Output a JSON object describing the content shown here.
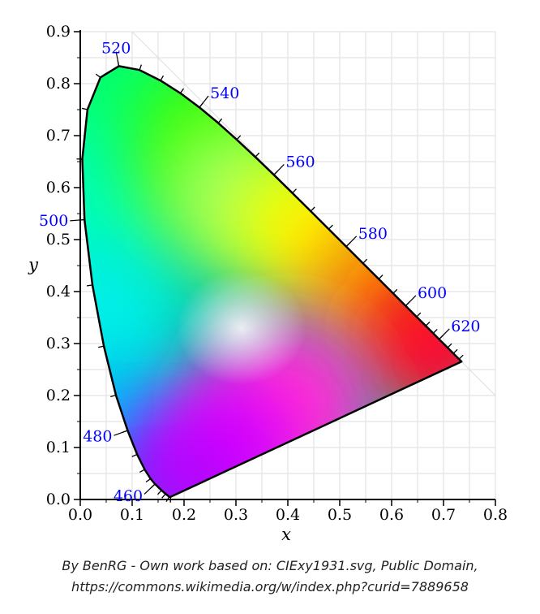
{
  "chart_data": {
    "type": "chromaticity-diagram",
    "xlabel": "x",
    "ylabel": "y",
    "xlim": [
      0.0,
      0.8
    ],
    "ylim": [
      0.0,
      0.9
    ],
    "x_ticks": [
      "0.0",
      "0.1",
      "0.2",
      "0.3",
      "0.4",
      "0.5",
      "0.6",
      "0.7",
      "0.8"
    ],
    "y_ticks": [
      "0.0",
      "0.1",
      "0.2",
      "0.3",
      "0.4",
      "0.5",
      "0.6",
      "0.7",
      "0.8",
      "0.9"
    ],
    "grid": true,
    "spectral_locus": [
      {
        "nm": 380,
        "x": 0.1741,
        "y": 0.005
      },
      {
        "nm": 420,
        "x": 0.1714,
        "y": 0.0051
      },
      {
        "nm": 440,
        "x": 0.1644,
        "y": 0.0109
      },
      {
        "nm": 450,
        "x": 0.1566,
        "y": 0.0177
      },
      {
        "nm": 460,
        "x": 0.144,
        "y": 0.0297
      },
      {
        "nm": 465,
        "x": 0.1355,
        "y": 0.0399
      },
      {
        "nm": 470,
        "x": 0.1241,
        "y": 0.0578
      },
      {
        "nm": 475,
        "x": 0.1096,
        "y": 0.0868
      },
      {
        "nm": 480,
        "x": 0.0913,
        "y": 0.1327
      },
      {
        "nm": 485,
        "x": 0.0687,
        "y": 0.2007
      },
      {
        "nm": 490,
        "x": 0.0454,
        "y": 0.295
      },
      {
        "nm": 495,
        "x": 0.0235,
        "y": 0.4127
      },
      {
        "nm": 500,
        "x": 0.0082,
        "y": 0.5384
      },
      {
        "nm": 505,
        "x": 0.0039,
        "y": 0.6548
      },
      {
        "nm": 510,
        "x": 0.0139,
        "y": 0.7502
      },
      {
        "nm": 515,
        "x": 0.0389,
        "y": 0.812
      },
      {
        "nm": 520,
        "x": 0.0743,
        "y": 0.8338
      },
      {
        "nm": 525,
        "x": 0.1142,
        "y": 0.8262
      },
      {
        "nm": 530,
        "x": 0.1547,
        "y": 0.8059
      },
      {
        "nm": 535,
        "x": 0.1929,
        "y": 0.7816
      },
      {
        "nm": 540,
        "x": 0.2296,
        "y": 0.7543
      },
      {
        "nm": 545,
        "x": 0.2658,
        "y": 0.7243
      },
      {
        "nm": 550,
        "x": 0.3016,
        "y": 0.6923
      },
      {
        "nm": 555,
        "x": 0.3373,
        "y": 0.6589
      },
      {
        "nm": 560,
        "x": 0.3731,
        "y": 0.6245
      },
      {
        "nm": 565,
        "x": 0.4087,
        "y": 0.5896
      },
      {
        "nm": 570,
        "x": 0.4441,
        "y": 0.5547
      },
      {
        "nm": 575,
        "x": 0.4788,
        "y": 0.5202
      },
      {
        "nm": 580,
        "x": 0.5125,
        "y": 0.4866
      },
      {
        "nm": 585,
        "x": 0.5448,
        "y": 0.4544
      },
      {
        "nm": 590,
        "x": 0.5752,
        "y": 0.4242
      },
      {
        "nm": 595,
        "x": 0.6029,
        "y": 0.3965
      },
      {
        "nm": 600,
        "x": 0.627,
        "y": 0.3725
      },
      {
        "nm": 605,
        "x": 0.6482,
        "y": 0.3514
      },
      {
        "nm": 610,
        "x": 0.6658,
        "y": 0.334
      },
      {
        "nm": 615,
        "x": 0.6801,
        "y": 0.3197
      },
      {
        "nm": 620,
        "x": 0.6915,
        "y": 0.3083
      },
      {
        "nm": 630,
        "x": 0.7079,
        "y": 0.292
      },
      {
        "nm": 640,
        "x": 0.719,
        "y": 0.2809
      },
      {
        "nm": 660,
        "x": 0.73,
        "y": 0.27
      },
      {
        "nm": 700,
        "x": 0.7347,
        "y": 0.2653
      }
    ],
    "wavelength_labels": [
      {
        "text": "460",
        "nm": 460
      },
      {
        "text": "480",
        "nm": 480
      },
      {
        "text": "500",
        "nm": 500
      },
      {
        "text": "520",
        "nm": 520
      },
      {
        "text": "540",
        "nm": 540
      },
      {
        "text": "560",
        "nm": 560
      },
      {
        "text": "580",
        "nm": 580
      },
      {
        "text": "600",
        "nm": 600
      },
      {
        "text": "620",
        "nm": 620
      }
    ],
    "colors": {
      "label": "#0000ff",
      "locus": "#000000",
      "grid": "#dddddd"
    }
  },
  "caption": {
    "line1": "By BenRG - Own work based on: CIExy1931.svg, Public Domain,",
    "line2": "https://commons.wikimedia.org/w/index.php?curid=7889658"
  }
}
